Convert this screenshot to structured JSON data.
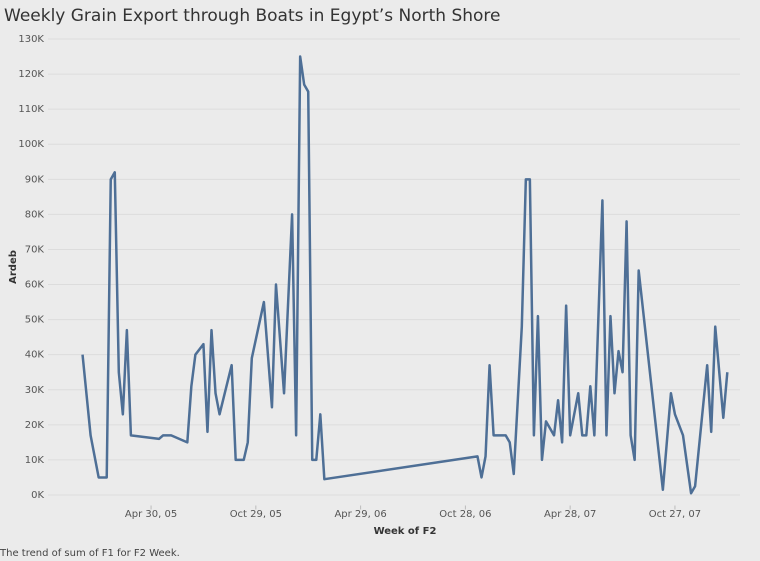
{
  "chart_data": {
    "type": "line",
    "title": "Weekly Grain Export through Boats in Egypt’s North Shore",
    "x_label": "Week of F2",
    "y_label": "Ardeb",
    "caption": "The trend of sum of F1 for F2 Week.",
    "x": [
      "2005-01-01",
      "2005-01-15",
      "2005-01-29",
      "2005-02-12",
      "2005-02-19",
      "2005-02-26",
      "2005-03-05",
      "2005-03-12",
      "2005-03-19",
      "2005-03-26",
      "2005-05-14",
      "2005-05-21",
      "2005-06-04",
      "2005-07-02",
      "2005-07-09",
      "2005-07-16",
      "2005-07-30",
      "2005-08-06",
      "2005-08-13",
      "2005-08-20",
      "2005-08-27",
      "2005-09-17",
      "2005-09-24",
      "2005-10-08",
      "2005-10-15",
      "2005-10-22",
      "2005-11-12",
      "2005-11-26",
      "2005-12-03",
      "2005-12-17",
      "2005-12-31",
      "2006-01-07",
      "2006-01-14",
      "2006-01-21",
      "2006-01-28",
      "2006-02-04",
      "2006-02-11",
      "2006-02-18",
      "2006-02-25",
      "2006-11-18",
      "2006-11-25",
      "2006-12-02",
      "2006-12-09",
      "2006-12-16",
      "2007-01-06",
      "2007-01-13",
      "2007-01-20",
      "2007-02-03",
      "2007-02-10",
      "2007-02-17",
      "2007-02-24",
      "2007-03-03",
      "2007-03-10",
      "2007-03-17",
      "2007-03-31",
      "2007-04-07",
      "2007-04-14",
      "2007-04-21",
      "2007-04-28",
      "2007-05-12",
      "2007-05-19",
      "2007-05-26",
      "2007-06-02",
      "2007-06-09",
      "2007-06-23",
      "2007-06-30",
      "2007-07-07",
      "2007-07-14",
      "2007-07-21",
      "2007-07-28",
      "2007-08-04",
      "2007-08-11",
      "2007-08-18",
      "2007-08-25",
      "2007-10-06",
      "2007-10-20",
      "2007-10-27",
      "2007-11-10",
      "2007-11-24",
      "2007-12-01",
      "2007-12-22",
      "2007-12-29",
      "2008-01-05",
      "2008-01-19",
      "2008-01-26"
    ],
    "series": [
      {
        "name": "F1",
        "color": "#4e6f96",
        "values": [
          40000,
          17000,
          5000,
          5000,
          90000,
          92000,
          35000,
          23000,
          47000,
          17000,
          16000,
          17000,
          17000,
          15000,
          31000,
          40000,
          43000,
          18000,
          47000,
          29000,
          23000,
          37000,
          10000,
          10000,
          15000,
          39000,
          55000,
          25000,
          60000,
          29000,
          80000,
          17000,
          125000,
          117000,
          115000,
          10000,
          10000,
          23000,
          4500,
          11000,
          5000,
          11000,
          37000,
          17000,
          17000,
          15000,
          6000,
          48000,
          90000,
          90000,
          17000,
          51000,
          10000,
          21000,
          17000,
          27000,
          15000,
          54000,
          17000,
          29000,
          17000,
          17000,
          31000,
          17000,
          84000,
          17000,
          51000,
          29000,
          41000,
          35000,
          78000,
          17000,
          10000,
          64000,
          1500,
          29000,
          23000,
          17000,
          500,
          2500,
          37000,
          18000,
          48000,
          22000,
          35000
        ]
      }
    ],
    "xlim": [
      "2004-11-02",
      "2008-02-17"
    ],
    "xticks": [
      {
        "value": "2005-04-30",
        "label": "Apr 30, 05"
      },
      {
        "value": "2005-10-29",
        "label": "Oct 29, 05"
      },
      {
        "value": "2006-04-29",
        "label": "Apr 29, 06"
      },
      {
        "value": "2006-10-28",
        "label": "Oct 28, 06"
      },
      {
        "value": "2007-04-28",
        "label": "Apr 28, 07"
      },
      {
        "value": "2007-10-27",
        "label": "Oct 27, 07"
      }
    ],
    "ylim": [
      -3000,
      133000
    ],
    "yticks": [
      {
        "value": 0,
        "label": "0K"
      },
      {
        "value": 10000,
        "label": "10K"
      },
      {
        "value": 20000,
        "label": "20K"
      },
      {
        "value": 30000,
        "label": "30K"
      },
      {
        "value": 40000,
        "label": "40K"
      },
      {
        "value": 50000,
        "label": "50K"
      },
      {
        "value": 60000,
        "label": "60K"
      },
      {
        "value": 70000,
        "label": "70K"
      },
      {
        "value": 80000,
        "label": "80K"
      },
      {
        "value": 90000,
        "label": "90K"
      },
      {
        "value": 100000,
        "label": "100K"
      },
      {
        "value": 110000,
        "label": "110K"
      },
      {
        "value": 120000,
        "label": "120K"
      },
      {
        "value": 130000,
        "label": "130K"
      }
    ],
    "grid": true
  }
}
